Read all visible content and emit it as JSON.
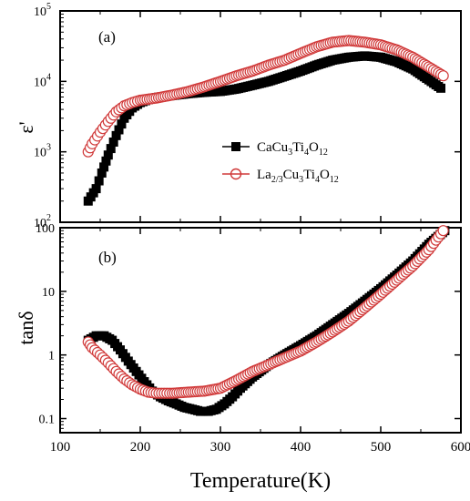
{
  "chart_data": [
    {
      "type": "scatter",
      "panel_label": "(a)",
      "ylabel": "ε'",
      "xlabel": "Temperature(K)",
      "yscale": "log",
      "xlim": [
        100,
        600
      ],
      "ylim": [
        100,
        100000
      ],
      "x_ticks": [
        "100",
        "200",
        "300",
        "400",
        "500",
        "600"
      ],
      "y_ticks": [
        {
          "base": "10",
          "exp": "2",
          "value": 100
        },
        {
          "base": "10",
          "exp": "3",
          "value": 1000
        },
        {
          "base": "10",
          "exp": "4",
          "value": 10000
        },
        {
          "base": "10",
          "exp": "5",
          "value": 100000
        }
      ],
      "legend_position": "center-right",
      "series": [
        {
          "name": "CaCu3Ti4O12",
          "label_parts": [
            [
              "CaCu",
              "n"
            ],
            [
              "3",
              "sub"
            ],
            [
              "Ti",
              "n"
            ],
            [
              "4",
              "sub"
            ],
            [
              "O",
              "n"
            ],
            [
              "12",
              "sub"
            ]
          ],
          "marker": "filled-square",
          "color": "#000000",
          "points": [
            [
              135,
              200
            ],
            [
              145,
              300
            ],
            [
              152,
              500
            ],
            [
              160,
              900
            ],
            [
              170,
              1700
            ],
            [
              180,
              3000
            ],
            [
              190,
              4200
            ],
            [
              200,
              5000
            ],
            [
              210,
              5500
            ],
            [
              220,
              5900
            ],
            [
              240,
              6300
            ],
            [
              260,
              6700
            ],
            [
              280,
              7000
            ],
            [
              300,
              7200
            ],
            [
              320,
              7800
            ],
            [
              340,
              8800
            ],
            [
              360,
              10000
            ],
            [
              380,
              11800
            ],
            [
              400,
              14000
            ],
            [
              420,
              17000
            ],
            [
              440,
              20000
            ],
            [
              460,
              22000
            ],
            [
              480,
              23000
            ],
            [
              500,
              22000
            ],
            [
              520,
              19000
            ],
            [
              540,
              15000
            ],
            [
              560,
              10500
            ],
            [
              575,
              8000
            ]
          ]
        },
        {
          "name": "La2/3Cu3Ti4O12",
          "label_parts": [
            [
              "La",
              "n"
            ],
            [
              "2/3",
              "sub"
            ],
            [
              "Cu",
              "n"
            ],
            [
              "3",
              "sub"
            ],
            [
              "Ti",
              "n"
            ],
            [
              "4",
              "sub"
            ],
            [
              "O",
              "n"
            ],
            [
              "12",
              "sub"
            ]
          ],
          "marker": "open-circle",
          "color": "#d03838",
          "points": [
            [
              135,
              1000
            ],
            [
              140,
              1300
            ],
            [
              150,
              1900
            ],
            [
              160,
              2700
            ],
            [
              170,
              3700
            ],
            [
              180,
              4500
            ],
            [
              190,
              5000
            ],
            [
              200,
              5400
            ],
            [
              220,
              5800
            ],
            [
              240,
              6400
            ],
            [
              260,
              7200
            ],
            [
              280,
              8400
            ],
            [
              300,
              10000
            ],
            [
              320,
              12000
            ],
            [
              340,
              14000
            ],
            [
              360,
              17000
            ],
            [
              380,
              20000
            ],
            [
              400,
              25000
            ],
            [
              420,
              31000
            ],
            [
              440,
              36000
            ],
            [
              460,
              38000
            ],
            [
              480,
              36000
            ],
            [
              500,
              33000
            ],
            [
              520,
              28000
            ],
            [
              540,
              22000
            ],
            [
              560,
              16000
            ],
            [
              578,
              12000
            ]
          ]
        }
      ]
    },
    {
      "type": "scatter",
      "panel_label": "(b)",
      "ylabel": "tanδ",
      "xlabel": "Temperature(K)",
      "yscale": "log",
      "xlim": [
        100,
        600
      ],
      "ylim": [
        0.06,
        100
      ],
      "x_ticks": [
        "100",
        "200",
        "300",
        "400",
        "500",
        "600"
      ],
      "y_ticks": [
        {
          "label": "0.1",
          "value": 0.1
        },
        {
          "label": "1",
          "value": 1
        },
        {
          "label": "10",
          "value": 10
        },
        {
          "label": "100",
          "value": 100
        }
      ],
      "series": [
        {
          "name": "CaCu3Ti4O12",
          "marker": "filled-square",
          "color": "#000000",
          "points": [
            [
              135,
              1.7
            ],
            [
              145,
              2.0
            ],
            [
              155,
              2.0
            ],
            [
              165,
              1.7
            ],
            [
              175,
              1.2
            ],
            [
              185,
              0.8
            ],
            [
              195,
              0.55
            ],
            [
              205,
              0.38
            ],
            [
              215,
              0.27
            ],
            [
              225,
              0.22
            ],
            [
              235,
              0.19
            ],
            [
              245,
              0.17
            ],
            [
              255,
              0.15
            ],
            [
              265,
              0.14
            ],
            [
              275,
              0.13
            ],
            [
              285,
              0.13
            ],
            [
              295,
              0.14
            ],
            [
              305,
              0.17
            ],
            [
              315,
              0.22
            ],
            [
              325,
              0.3
            ],
            [
              340,
              0.45
            ],
            [
              360,
              0.7
            ],
            [
              380,
              1.0
            ],
            [
              400,
              1.4
            ],
            [
              420,
              2.0
            ],
            [
              440,
              3.0
            ],
            [
              460,
              4.5
            ],
            [
              480,
              7.0
            ],
            [
              500,
              11
            ],
            [
              520,
              18
            ],
            [
              540,
              30
            ],
            [
              560,
              55
            ],
            [
              580,
              90
            ]
          ]
        },
        {
          "name": "La2/3Cu3Ti4O12",
          "marker": "open-circle",
          "color": "#d03838",
          "points": [
            [
              135,
              1.6
            ],
            [
              140,
              1.3
            ],
            [
              150,
              1.0
            ],
            [
              160,
              0.75
            ],
            [
              170,
              0.55
            ],
            [
              180,
              0.42
            ],
            [
              190,
              0.34
            ],
            [
              200,
              0.29
            ],
            [
              210,
              0.26
            ],
            [
              220,
              0.25
            ],
            [
              230,
              0.25
            ],
            [
              240,
              0.25
            ],
            [
              260,
              0.26
            ],
            [
              280,
              0.27
            ],
            [
              300,
              0.3
            ],
            [
              320,
              0.4
            ],
            [
              340,
              0.55
            ],
            [
              360,
              0.7
            ],
            [
              380,
              0.9
            ],
            [
              400,
              1.15
            ],
            [
              420,
              1.6
            ],
            [
              440,
              2.3
            ],
            [
              460,
              3.4
            ],
            [
              480,
              5.5
            ],
            [
              500,
              9
            ],
            [
              520,
              15
            ],
            [
              540,
              25
            ],
            [
              560,
              45
            ],
            [
              578,
              90
            ]
          ]
        }
      ]
    }
  ]
}
